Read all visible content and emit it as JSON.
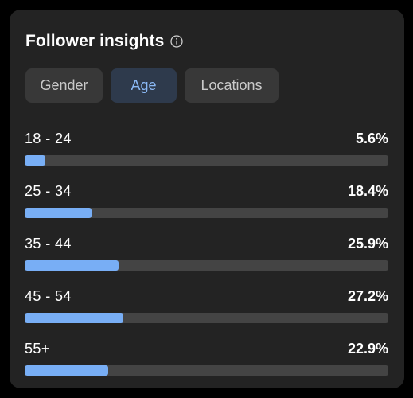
{
  "title": "Follower insights",
  "icons": {
    "info": "info-circle-icon"
  },
  "tabs": [
    {
      "label": "Gender",
      "selected": false
    },
    {
      "label": "Age",
      "selected": true
    },
    {
      "label": "Locations",
      "selected": false
    }
  ],
  "rows": [
    {
      "label": "18 - 24",
      "value": "5.6%",
      "fraction": 0.056
    },
    {
      "label": "25 - 34",
      "value": "18.4%",
      "fraction": 0.184
    },
    {
      "label": "35 - 44",
      "value": "25.9%",
      "fraction": 0.259
    },
    {
      "label": "45 - 54",
      "value": "27.2%",
      "fraction": 0.272
    },
    {
      "label": "55+",
      "value": "22.9%",
      "fraction": 0.229
    }
  ],
  "colors": {
    "bar_fill": "#78aef5",
    "bar_track": "#444444",
    "card_bg": "#232323",
    "selected_tab_bg": "#2e3a4c",
    "selected_tab_text": "#8ab8f5"
  }
}
